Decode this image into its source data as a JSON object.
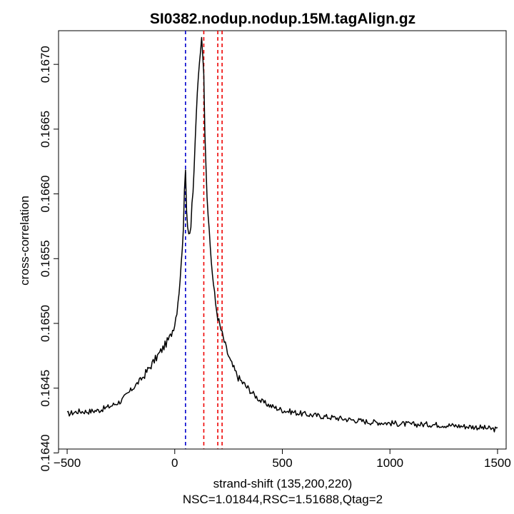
{
  "chart_data": {
    "type": "line",
    "title": "SI0382.nodup.nodup.15M.tagAlign.gz",
    "xlabel": "strand-shift (135,200,220)",
    "subtitle": "NSC=1.01844,RSC=1.51688,Qtag=2",
    "ylabel": "cross-correlation",
    "xlim": [
      -540,
      1540
    ],
    "ylim": [
      0.16403,
      0.16726
    ],
    "x_ticks": [
      -500,
      0,
      500,
      1000,
      1500
    ],
    "x_tick_labels": [
      "−500",
      "0",
      "500",
      "1000",
      "1500"
    ],
    "y_ticks": [
      0.164,
      0.1645,
      0.165,
      0.1655,
      0.166,
      0.1665,
      0.167
    ],
    "y_tick_labels": [
      "0.1640",
      "0.1645",
      "0.1650",
      "0.1655",
      "0.1660",
      "0.1665",
      "0.1670"
    ],
    "grid": false,
    "reference_lines": [
      {
        "x": 50,
        "color": "#0000cc",
        "style": "dashed"
      },
      {
        "x": 135,
        "color": "#ee0000",
        "style": "dashed"
      },
      {
        "x": 200,
        "color": "#ee0000",
        "style": "dashed"
      },
      {
        "x": 220,
        "color": "#ee0000",
        "style": "dashed"
      }
    ],
    "series_color": "#000000",
    "series": [
      {
        "x": [
          -500,
          -450,
          -400,
          -350,
          -300,
          -250,
          -200,
          -150,
          -100,
          -50,
          -20,
          0,
          10,
          20,
          30,
          40,
          45,
          50,
          55,
          60,
          65,
          70,
          75,
          80,
          85,
          90,
          95,
          100,
          110,
          120,
          125,
          130,
          135,
          140,
          145,
          150,
          160,
          170,
          180,
          190,
          200,
          210,
          220,
          240,
          260,
          280,
          300,
          350,
          400,
          450,
          500,
          600,
          700,
          800,
          900,
          1000,
          1100,
          1200,
          1300,
          1400,
          1500
        ],
        "y": [
          0.1643,
          0.16432,
          0.16432,
          0.16433,
          0.16436,
          0.1644,
          0.16449,
          0.16458,
          0.1647,
          0.16482,
          0.1649,
          0.165,
          0.1651,
          0.16525,
          0.16545,
          0.16575,
          0.166,
          0.16618,
          0.1659,
          0.16575,
          0.16572,
          0.1657,
          0.16575,
          0.1659,
          0.166,
          0.1662,
          0.1664,
          0.16662,
          0.1669,
          0.16712,
          0.16722,
          0.1671,
          0.1669,
          0.1665,
          0.16625,
          0.166,
          0.1657,
          0.16548,
          0.1653,
          0.16515,
          0.16505,
          0.16498,
          0.16492,
          0.1648,
          0.1647,
          0.16463,
          0.16457,
          0.16448,
          0.1644,
          0.16436,
          0.16433,
          0.1643,
          0.16428,
          0.16426,
          0.16424,
          0.16423,
          0.16422,
          0.16422,
          0.16421,
          0.1642,
          0.16418
        ]
      }
    ]
  }
}
